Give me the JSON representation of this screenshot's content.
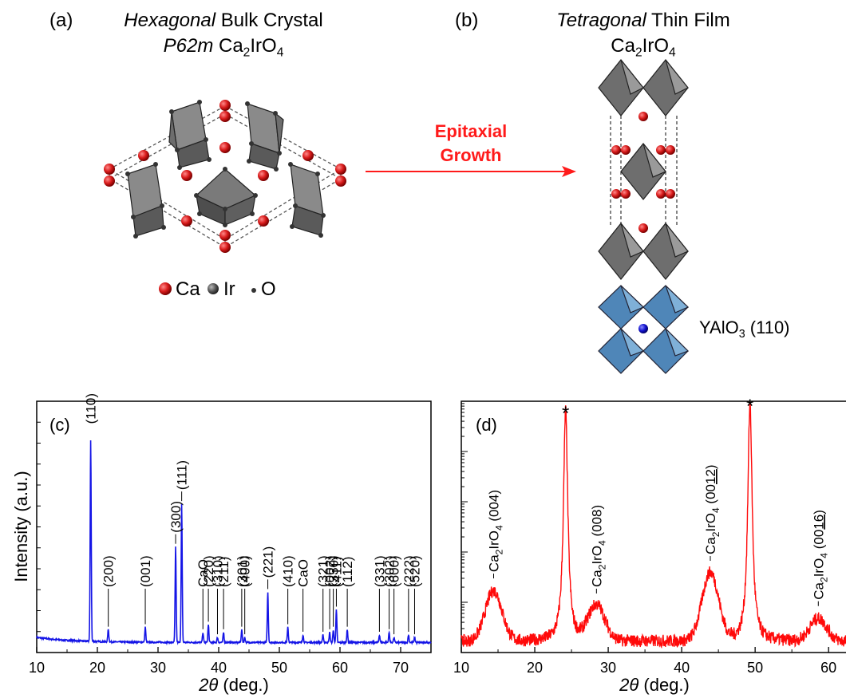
{
  "panels": {
    "a": {
      "label": "(a)",
      "title_italic": "Hexagonal",
      "title_rest": " Bulk Crystal",
      "subtitle_italic": "P62m",
      "subtitle_formula_pre": " Ca",
      "subtitle_formula_sub1": "2",
      "subtitle_formula_mid": "IrO",
      "subtitle_formula_sub2": "4",
      "legend": [
        {
          "label": "Ca",
          "color": "#d42020",
          "kind": "large"
        },
        {
          "label": "Ir",
          "color": "#444444",
          "kind": "medium"
        },
        {
          "label": "O",
          "color": "#333333",
          "kind": "small"
        }
      ]
    },
    "b": {
      "label": "(b)",
      "title_italic": "Tetragonal",
      "title_rest": " Thin Film",
      "formula_pre": "Ca",
      "formula_sub1": "2",
      "formula_mid": "IrO",
      "formula_sub2": "4",
      "substrate_pre": "YAlO",
      "substrate_sub": "3",
      "substrate_post": " (110)"
    },
    "arrow": {
      "line1": "Epitaxial",
      "line2": "Growth",
      "color": "#ff1a1a"
    }
  },
  "chart_data": [
    {
      "type": "line",
      "panel_label": "(c)",
      "ylabel": "Intensity (a.u.)",
      "xlabel_symbol": "2θ",
      "xlabel_unit": " (deg.)",
      "xlim": [
        10,
        75
      ],
      "y_scale": "linear",
      "xticks": [
        10,
        20,
        30,
        40,
        50,
        60,
        70
      ],
      "color": "#1414e6",
      "background_level": 0.04,
      "peaks": [
        {
          "x": 18.9,
          "h": 0.8,
          "label": "(110)"
        },
        {
          "x": 21.8,
          "h": 0.05,
          "label": "(200)"
        },
        {
          "x": 27.9,
          "h": 0.06,
          "label": "(001)"
        },
        {
          "x": 32.9,
          "h": 0.38,
          "label": "(300)"
        },
        {
          "x": 33.9,
          "h": 0.55,
          "label": "(111)"
        },
        {
          "x": 37.4,
          "h": 0.04,
          "label": "CaO"
        },
        {
          "x": 38.3,
          "h": 0.07,
          "label": "(220)"
        },
        {
          "x": 39.8,
          "h": 0.02,
          "label": "(310)"
        },
        {
          "x": 40.8,
          "h": 0.04,
          "label": "(211)"
        },
        {
          "x": 43.8,
          "h": 0.05,
          "label": "(301)"
        },
        {
          "x": 44.3,
          "h": 0.02,
          "label": "(400)"
        },
        {
          "x": 48.1,
          "h": 0.2,
          "label": "(221)"
        },
        {
          "x": 51.4,
          "h": 0.06,
          "label": "(410)"
        },
        {
          "x": 53.9,
          "h": 0.03,
          "label": "CaO"
        },
        {
          "x": 57.2,
          "h": 0.03,
          "label": "(321)"
        },
        {
          "x": 58.3,
          "h": 0.04,
          "label": "(002)"
        },
        {
          "x": 58.9,
          "h": 0.05,
          "label": "(330)"
        },
        {
          "x": 59.4,
          "h": 0.13,
          "label": "(411)"
        },
        {
          "x": 61.2,
          "h": 0.05,
          "label": "(112)"
        },
        {
          "x": 66.5,
          "h": 0.03,
          "label": "(331)"
        },
        {
          "x": 68.1,
          "h": 0.04,
          "label": "(302)"
        },
        {
          "x": 68.9,
          "h": 0.02,
          "label": "(600)"
        },
        {
          "x": 71.3,
          "h": 0.03,
          "label": "(222)"
        },
        {
          "x": 72.3,
          "h": 0.02,
          "label": "(520)"
        }
      ]
    },
    {
      "type": "line",
      "panel_label": "(d)",
      "xlabel_symbol": "2θ",
      "xlabel_unit": " (deg.)",
      "xlim": [
        10,
        64
      ],
      "y_scale": "log",
      "xticks": [
        10,
        20,
        30,
        40,
        50,
        60
      ],
      "color": "#ff0a0a",
      "background_level": 0.045,
      "substrate_peaks": [
        {
          "x": 24.2,
          "h": 0.92,
          "label": "*"
        },
        {
          "x": 49.3,
          "h": 0.95,
          "label": "*"
        }
      ],
      "film_peaks": [
        {
          "x": 14.4,
          "h": 0.2,
          "label_pre": "Ca",
          "label_sub1": "2",
          "label_mid": "IrO",
          "label_sub2": "4",
          "label_idx": " (004)",
          "label_underline": ""
        },
        {
          "x": 28.4,
          "h": 0.14,
          "label_pre": "Ca",
          "label_sub1": "2",
          "label_mid": "IrO",
          "label_sub2": "4",
          "label_idx": " (008)",
          "label_underline": ""
        },
        {
          "x": 43.9,
          "h": 0.27,
          "label_pre": "Ca",
          "label_sub1": "2",
          "label_mid": "IrO",
          "label_sub2": "4",
          "label_idx": " (00",
          "label_underline": "12",
          "label_close": ")"
        },
        {
          "x": 58.6,
          "h": 0.09,
          "label_pre": "Ca",
          "label_sub1": "2",
          "label_mid": "IrO",
          "label_sub2": "4",
          "label_idx": " (00",
          "label_underline": "16",
          "label_close": ")"
        }
      ]
    }
  ]
}
